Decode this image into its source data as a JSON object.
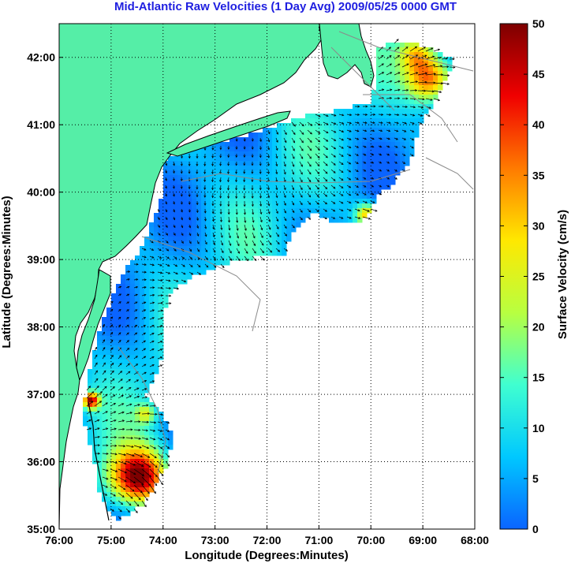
{
  "title": "Mid-Atlantic Raw Velocities (1 Day Avg) 2009/05/25 0000 GMT",
  "map": {
    "xlabel": "Longitude (Degrees:Minutes)",
    "ylabel": "Latitude (Degrees:Minutes)",
    "lon_range": [
      -76,
      -68
    ],
    "lat_range": [
      35,
      42.5
    ],
    "x_ticks": [
      {
        "value": -76,
        "label": "76:00"
      },
      {
        "value": -75,
        "label": "75:00"
      },
      {
        "value": -74,
        "label": "74:00"
      },
      {
        "value": -73,
        "label": "73:00"
      },
      {
        "value": -72,
        "label": "72:00"
      },
      {
        "value": -71,
        "label": "71:00"
      },
      {
        "value": -70,
        "label": "70:00"
      },
      {
        "value": -69,
        "label": "69:00"
      },
      {
        "value": -68,
        "label": "68:00"
      }
    ],
    "y_ticks": [
      {
        "value": 35,
        "label": "35:00"
      },
      {
        "value": 36,
        "label": "36:00"
      },
      {
        "value": 37,
        "label": "37:00"
      },
      {
        "value": 38,
        "label": "38:00"
      },
      {
        "value": 39,
        "label": "39:00"
      },
      {
        "value": 40,
        "label": "40:00"
      },
      {
        "value": 41,
        "label": "41:00"
      },
      {
        "value": 42,
        "label": "42:00"
      }
    ],
    "grid": "dotted",
    "land_color": "#55eea7",
    "land_edge_color": "#000000",
    "arrow_color": "#000000"
  },
  "colorbar": {
    "label": "Surface Velocity (cm/s)",
    "range": [
      0,
      50
    ],
    "ticks": [
      {
        "value": 0,
        "label": "0"
      },
      {
        "value": 5,
        "label": "5"
      },
      {
        "value": 10,
        "label": "10"
      },
      {
        "value": 15,
        "label": "15"
      },
      {
        "value": 20,
        "label": "20"
      },
      {
        "value": 25,
        "label": "25"
      },
      {
        "value": 30,
        "label": "30"
      },
      {
        "value": 35,
        "label": "35"
      },
      {
        "value": 40,
        "label": "40"
      },
      {
        "value": 45,
        "label": "45"
      },
      {
        "value": 50,
        "label": "50"
      }
    ],
    "colors": [
      "#0a64ff",
      "#00c8ff",
      "#40ffd0",
      "#b8ff40",
      "#ffe800",
      "#ff7a00",
      "#f00000",
      "#7d0000"
    ]
  }
}
